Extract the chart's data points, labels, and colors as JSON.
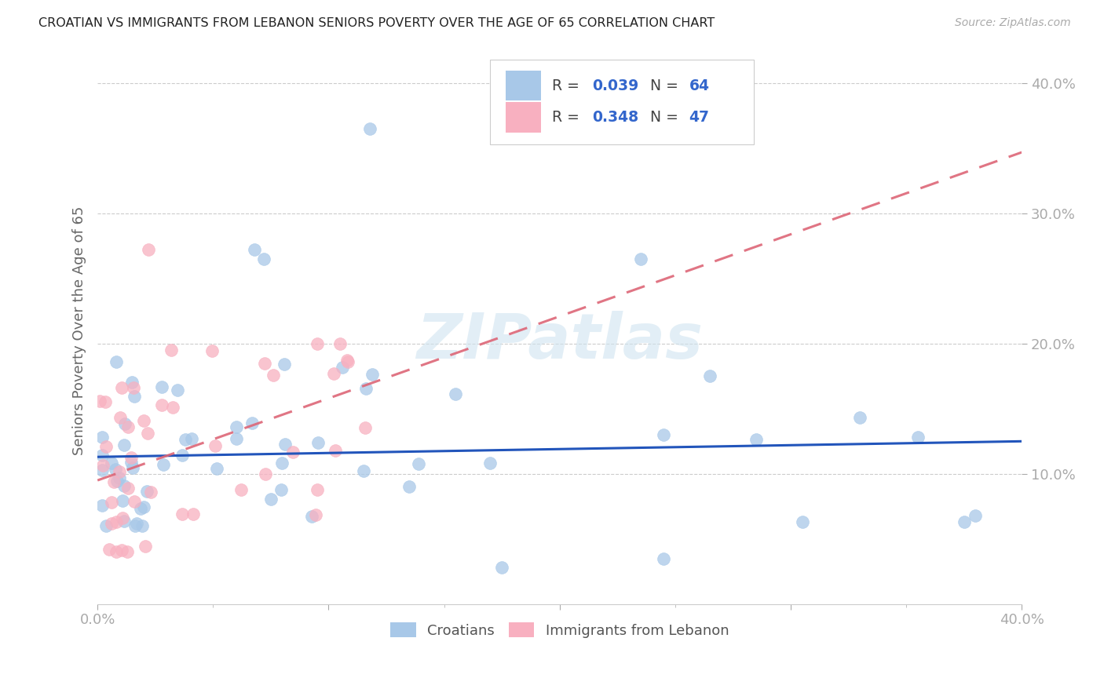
{
  "title": "CROATIAN VS IMMIGRANTS FROM LEBANON SENIORS POVERTY OVER THE AGE OF 65 CORRELATION CHART",
  "source": "Source: ZipAtlas.com",
  "ylabel": "Seniors Poverty Over the Age of 65",
  "xlim": [
    0.0,
    0.4
  ],
  "ylim": [
    0.0,
    0.42
  ],
  "ytick_positions": [
    0.1,
    0.2,
    0.3,
    0.4
  ],
  "ytick_labels": [
    "10.0%",
    "20.0%",
    "30.0%",
    "40.0%"
  ],
  "croatian_R": 0.039,
  "croatian_N": 64,
  "lebanon_R": 0.348,
  "lebanon_N": 47,
  "croatian_color": "#a8c8e8",
  "lebanon_color": "#f8b0c0",
  "line_croatian_color": "#2255bb",
  "line_lebanon_color": "#dd6677",
  "watermark": "ZIPatlas",
  "background_color": "#ffffff",
  "text_color_blue": "#3399ff",
  "legend_text_color": "#3366cc",
  "grid_color": "#cccccc",
  "tick_color": "#aaaaaa"
}
